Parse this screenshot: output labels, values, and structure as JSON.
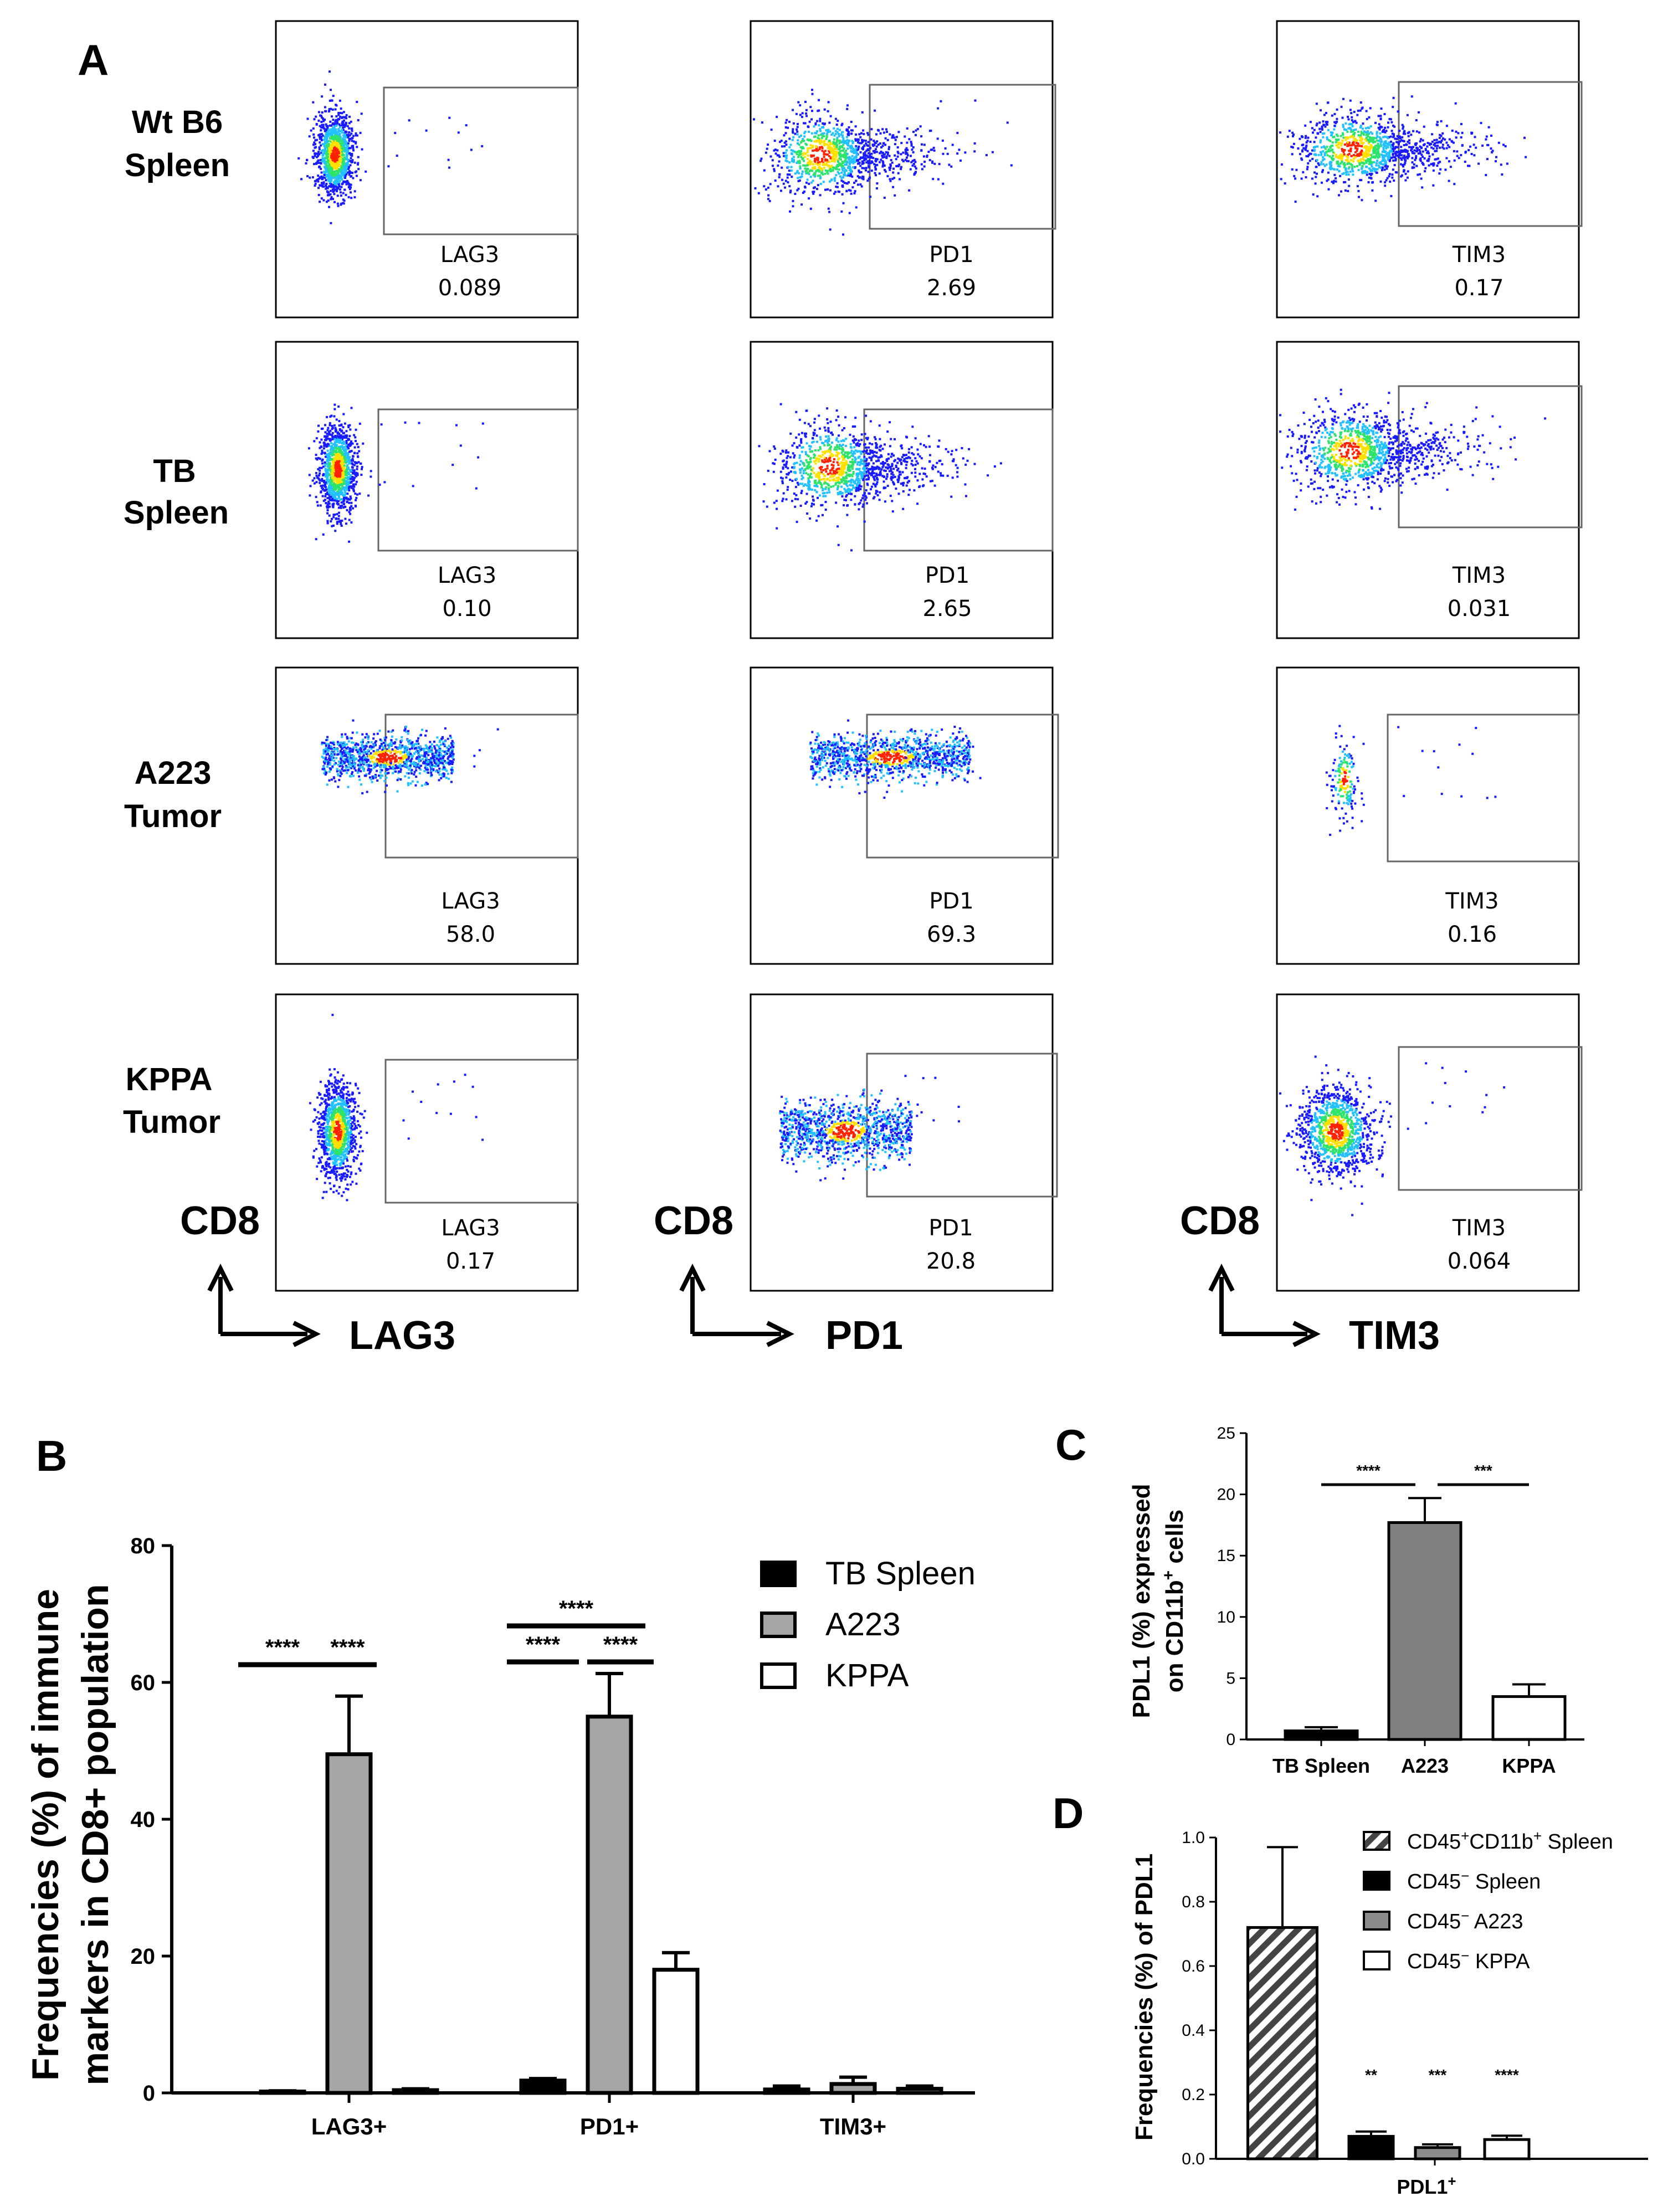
{
  "panels": {
    "a": "A",
    "b": "B",
    "c": "C",
    "d": "D"
  },
  "flow": {
    "rows": [
      {
        "line1": "Wt B6",
        "line2": "Spleen"
      },
      {
        "line1": "TB",
        "line2": "Spleen"
      },
      {
        "line1": "A223",
        "line2": "Tumor"
      },
      {
        "line1": "KPPA",
        "line2": "Tumor"
      }
    ],
    "columns": [
      {
        "marker": "LAG3",
        "y_axis": "CD8",
        "x_axis": "LAG3"
      },
      {
        "marker": "PD1",
        "y_axis": "CD8",
        "x_axis": "PD1"
      },
      {
        "marker": "TIM3",
        "y_axis": "CD8",
        "x_axis": "TIM3"
      }
    ],
    "gate_values": [
      [
        "0.089",
        "2.69",
        "0.17"
      ],
      [
        "0.10",
        "2.65",
        "0.031"
      ],
      [
        "58.0",
        "69.3",
        "0.16"
      ],
      [
        "0.17",
        "20.8",
        "0.064"
      ]
    ],
    "colors": {
      "low": "#1a1aff",
      "mid": "#22c0ff",
      "mid2": "#2ee36b",
      "high": "#ffe000",
      "peak": "#ff2200"
    }
  },
  "chart_data": [
    {
      "id": "B",
      "type": "bar",
      "ylabel_line1": "Frequencies (%) of immune",
      "ylabel_line2": "markers in CD8+ population",
      "categories": [
        "LAG3+",
        "PD1+",
        "TIM3+"
      ],
      "ylim": [
        0,
        80
      ],
      "yticks": [
        "0",
        "20",
        "40",
        "60",
        "80"
      ],
      "series": [
        {
          "name": "TB Spleen",
          "values": [
            0.2,
            1.8,
            0.5
          ],
          "errors": [
            0.1,
            0.3,
            0.5
          ],
          "fill": "#000000"
        },
        {
          "name": "A223",
          "values": [
            49.5,
            55.0,
            1.3
          ],
          "errors": [
            8.5,
            6.3,
            1.0
          ],
          "fill": "#a6a6a6"
        },
        {
          "name": "KPPA",
          "values": [
            0.4,
            18.0,
            0.6
          ],
          "errors": [
            0.2,
            2.5,
            0.4
          ],
          "fill": "#ffffff"
        }
      ],
      "significance": [
        {
          "label": "****",
          "category": "LAG3+",
          "pair": "TB Spleen-A223"
        },
        {
          "label": "****",
          "category": "LAG3+",
          "pair": "A223-KPPA"
        },
        {
          "label": "****",
          "category": "PD1+",
          "pair": "TB Spleen-KPPA"
        },
        {
          "label": "****",
          "category": "PD1+",
          "pair": "TB Spleen-A223"
        },
        {
          "label": "****",
          "category": "PD1+",
          "pair": "A223-KPPA"
        }
      ]
    },
    {
      "id": "C",
      "type": "bar",
      "ylabel_line1": "PDL1 (%) expressed",
      "ylabel_line2": "on CD11b",
      "ylabel_sup": "+",
      "ylabel_tail": " cells",
      "categories": [
        "TB Spleen",
        "A223",
        "KPPA"
      ],
      "ylim": [
        0,
        25
      ],
      "yticks": [
        "0",
        "5",
        "10",
        "15",
        "20",
        "25"
      ],
      "values": [
        0.7,
        17.7,
        3.5
      ],
      "errors": [
        0.3,
        2.0,
        1.0
      ],
      "fills": [
        "#000000",
        "#7f7f7f",
        "#ffffff"
      ],
      "significance": [
        {
          "label": "****",
          "pair": "TB Spleen-A223"
        },
        {
          "label": "***",
          "pair": "A223-KPPA"
        }
      ]
    },
    {
      "id": "D",
      "type": "bar",
      "ylabel": "Frequencies (%) of PDL1",
      "category_main": "PDL1",
      "category_sup": "+",
      "ylim": [
        0,
        1.0
      ],
      "yticks": [
        "0.0",
        "0.2",
        "0.4",
        "0.6",
        "0.8",
        "1.0"
      ],
      "series": [
        {
          "name_main": "CD45",
          "name_sup": "+",
          "name_mid": "CD11b",
          "name_sup2": "+",
          "name_tail": " Spleen",
          "value": 0.72,
          "error": 0.25,
          "fill": "hatch"
        },
        {
          "name_main": "CD45",
          "name_sup": "−",
          "name_tail": " Spleen",
          "value": 0.07,
          "error": 0.015,
          "fill": "#000000",
          "sig": "**"
        },
        {
          "name_main": "CD45",
          "name_sup": "−",
          "name_tail": " A223",
          "value": 0.035,
          "error": 0.01,
          "fill": "#8c8c8c",
          "sig": "***"
        },
        {
          "name_main": "CD45",
          "name_sup": "−",
          "name_tail": " KPPA",
          "value": 0.06,
          "error": 0.012,
          "fill": "#ffffff",
          "sig": "****"
        }
      ]
    }
  ]
}
